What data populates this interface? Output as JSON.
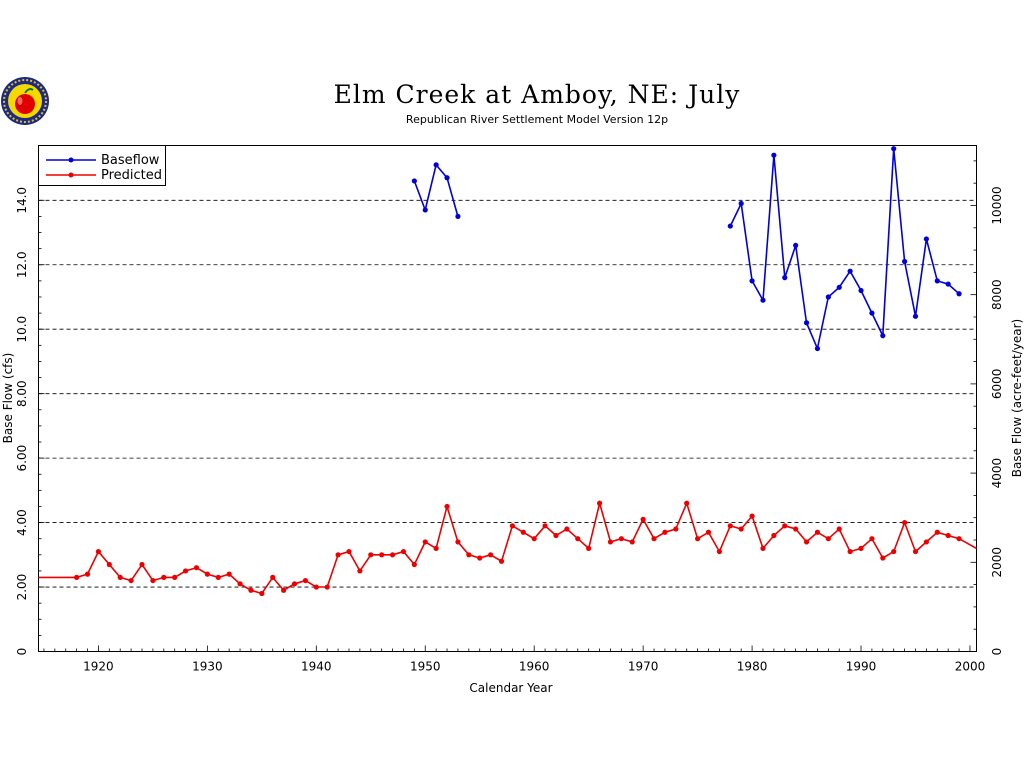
{
  "chart_data": {
    "type": "line",
    "title": "Elm Creek at Amboy, NE: July",
    "subtitle": "Republican River Settlement Model Version 12p",
    "xlabel": "Calendar Year",
    "ylabel": "Base Flow (cfs)",
    "ylabel_right": "Base Flow (acre-feet/year)",
    "xlim": [
      1914.5,
      2000.6
    ],
    "ylim": [
      0,
      15.7
    ],
    "x_ticks": [
      1920,
      1930,
      1940,
      1950,
      1960,
      1970,
      1980,
      1990,
      2000
    ],
    "y_ticks": [
      0,
      2,
      4,
      6,
      8,
      10,
      12,
      14
    ],
    "y_tick_labels": [
      "0",
      "2.00",
      "4.00",
      "6.00",
      "8.00",
      "10.0",
      "12.0",
      "14.0"
    ],
    "y_right_ticks": [
      0,
      2000,
      4000,
      6000,
      8000,
      10000
    ],
    "y_right_tick_labels": [
      "0",
      "2000",
      "4000",
      "6000",
      "8000",
      "10000"
    ],
    "right_axis_factor": 722.6,
    "grid": "dashed horizontal at major y ticks",
    "legend_position": "top-left",
    "series": [
      {
        "name": "Baseflow",
        "color": "#0000dd",
        "segments": [
          {
            "x": [
              1949,
              1950,
              1951,
              1952,
              1953
            ],
            "y": [
              14.6,
              13.7,
              15.1,
              14.7,
              13.5
            ]
          },
          {
            "x": [
              1978,
              1979,
              1980,
              1981,
              1982,
              1983,
              1984,
              1985,
              1986,
              1987,
              1988,
              1989,
              1990,
              1991,
              1992,
              1993,
              1994,
              1995,
              1996,
              1997,
              1998,
              1999
            ],
            "y": [
              13.2,
              13.9,
              11.5,
              10.9,
              15.4,
              11.6,
              12.6,
              10.2,
              9.4,
              11.0,
              11.3,
              11.8,
              11.2,
              10.5,
              9.8,
              15.6,
              12.1,
              10.4,
              12.8,
              11.5,
              11.4,
              11.1
            ]
          }
        ]
      },
      {
        "name": "Predicted",
        "color": "#ee0000",
        "x": [
          1914.5,
          1918,
          1919,
          1920,
          1921,
          1922,
          1923,
          1924,
          1925,
          1926,
          1927,
          1928,
          1929,
          1930,
          1931,
          1932,
          1933,
          1934,
          1935,
          1936,
          1937,
          1938,
          1939,
          1940,
          1941,
          1942,
          1943,
          1944,
          1945,
          1946,
          1947,
          1948,
          1949,
          1950,
          1951,
          1952,
          1953,
          1954,
          1955,
          1956,
          1957,
          1958,
          1959,
          1960,
          1961,
          1962,
          1963,
          1964,
          1965,
          1966,
          1967,
          1968,
          1969,
          1970,
          1971,
          1972,
          1973,
          1974,
          1975,
          1976,
          1977,
          1978,
          1979,
          1980,
          1981,
          1982,
          1983,
          1984,
          1985,
          1986,
          1987,
          1988,
          1989,
          1990,
          1991,
          1992,
          1993,
          1994,
          1995,
          1996,
          1997,
          1998,
          1999,
          2000.6
        ],
        "y": [
          2.3,
          2.3,
          2.4,
          3.1,
          2.7,
          2.3,
          2.2,
          2.7,
          2.2,
          2.3,
          2.3,
          2.5,
          2.6,
          2.4,
          2.3,
          2.4,
          2.1,
          1.9,
          1.8,
          2.3,
          1.9,
          2.1,
          2.2,
          2.0,
          2.0,
          3.0,
          3.1,
          2.5,
          3.0,
          3.0,
          3.0,
          3.1,
          2.7,
          3.4,
          3.2,
          4.5,
          3.4,
          3.0,
          2.9,
          3.0,
          2.8,
          3.9,
          3.7,
          3.5,
          3.9,
          3.6,
          3.8,
          3.5,
          3.2,
          4.6,
          3.4,
          3.5,
          3.4,
          4.1,
          3.5,
          3.7,
          3.8,
          4.6,
          3.5,
          3.7,
          3.1,
          3.9,
          3.8,
          4.2,
          3.2,
          3.6,
          3.9,
          3.8,
          3.4,
          3.7,
          3.5,
          3.8,
          3.1,
          3.2,
          3.5,
          2.9,
          3.1,
          4.0,
          3.1,
          3.4,
          3.7,
          3.6,
          3.5,
          3.2
        ]
      }
    ]
  }
}
